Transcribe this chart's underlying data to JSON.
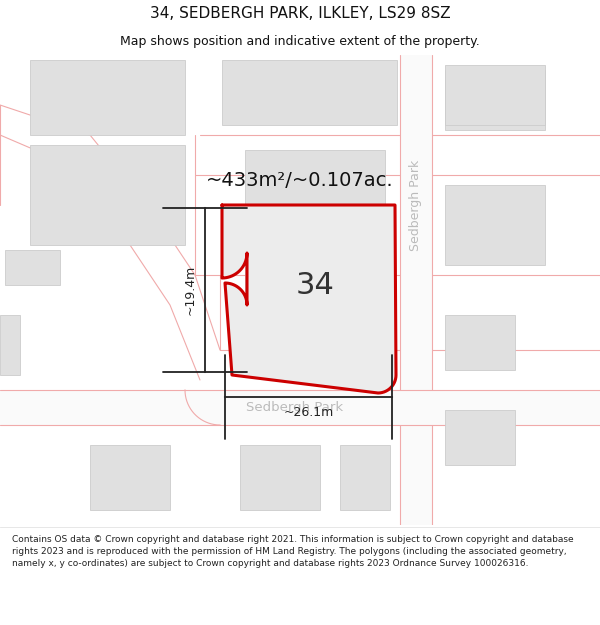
{
  "title": "34, SEDBERGH PARK, ILKLEY, LS29 8SZ",
  "subtitle": "Map shows position and indicative extent of the property.",
  "footer": "Contains OS data © Crown copyright and database right 2021. This information is subject to Crown copyright and database rights 2023 and is reproduced with the permission of HM Land Registry. The polygons (including the associated geometry, namely x, y co-ordinates) are subject to Crown copyright and database rights 2023 Ordnance Survey 100026316.",
  "area_label": "~433m²/~0.107ac.",
  "plot_number": "34",
  "dim_width": "~26.1m",
  "dim_height": "~19.4m",
  "road_label_h": "Sedbergh Park",
  "road_label_v": "Sedbergh Park",
  "outline_color": "#cc0000",
  "dim_color": "#222222",
  "road_line_color": "#f0aaaa",
  "building_fill": "#e0e0e0",
  "building_edge": "#cccccc",
  "map_bg": "#ffffff",
  "title_fontsize": 11,
  "subtitle_fontsize": 9,
  "footer_fontsize": 6.5,
  "area_fontsize": 14,
  "plot_num_fontsize": 22,
  "road_label_color": "#bbbbbb"
}
